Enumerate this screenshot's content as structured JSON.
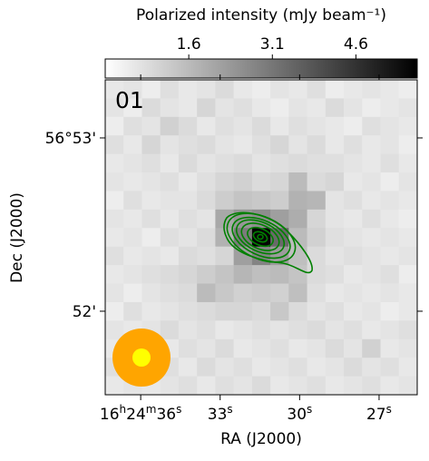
{
  "chart_data": {
    "type": "image",
    "panel_label": "01",
    "xlabel": "RA (J2000)",
    "ylabel": "Dec (J2000)",
    "colorbar_label": "Polarized intensity (mJy beam⁻¹)",
    "clim": [
      0.1,
      5.7
    ],
    "cticks": [
      1.6,
      3.1,
      4.6
    ],
    "xlim": [
      37.34,
      25.56
    ],
    "xticks": [
      {
        "value": 36,
        "label": "16h24m36s"
      },
      {
        "value": 33,
        "label": "33s"
      },
      {
        "value": 30,
        "label": "30s"
      },
      {
        "value": 27,
        "label": "27s"
      }
    ],
    "ylim": [
      51.518,
      53.335
    ],
    "yticks": [
      {
        "value": 53,
        "label": "56°53'"
      },
      {
        "value": 52,
        "label": "52'"
      }
    ],
    "contour_color": "#008000",
    "image": [
      [
        0.6,
        0.7,
        0.5,
        0.8,
        0.6,
        0.7,
        0.9,
        0.6,
        0.5,
        0.7,
        0.6,
        0.8,
        0.5,
        0.6,
        0.7,
        0.6,
        0.5
      ],
      [
        0.7,
        0.5,
        0.9,
        0.7,
        0.6,
        1.0,
        0.7,
        0.8,
        0.6,
        0.5,
        0.7,
        0.6,
        0.9,
        0.7,
        0.5,
        0.6,
        0.7
      ],
      [
        0.5,
        0.8,
        0.7,
        1.1,
        0.9,
        0.6,
        0.8,
        0.7,
        0.9,
        0.6,
        0.8,
        0.7,
        0.6,
        0.5,
        0.8,
        0.7,
        0.6
      ],
      [
        0.8,
        0.6,
        1.0,
        0.7,
        0.8,
        0.9,
        0.7,
        0.6,
        0.8,
        1.0,
        0.7,
        0.9,
        0.6,
        0.8,
        0.6,
        0.7,
        0.5
      ],
      [
        0.6,
        0.7,
        0.8,
        0.6,
        0.9,
        0.7,
        0.8,
        0.9,
        0.7,
        0.8,
        0.9,
        0.8,
        0.8,
        0.7,
        0.6,
        0.8,
        0.6
      ],
      [
        0.7,
        0.6,
        0.7,
        0.8,
        0.6,
        0.8,
        1.0,
        1.1,
        0.9,
        1.0,
        1.6,
        0.9,
        1.0,
        0.6,
        0.7,
        0.5,
        0.7
      ],
      [
        0.5,
        0.8,
        0.6,
        0.7,
        0.7,
        0.9,
        1.2,
        1.4,
        1.3,
        1.2,
        1.8,
        1.7,
        0.7,
        0.8,
        0.6,
        0.7,
        0.6
      ],
      [
        0.7,
        0.6,
        0.8,
        0.6,
        0.8,
        0.7,
        2.0,
        2.4,
        2.6,
        2.2,
        1.9,
        1.0,
        0.7,
        0.6,
        0.8,
        0.6,
        0.5
      ],
      [
        0.6,
        0.7,
        0.5,
        0.8,
        0.7,
        0.9,
        1.8,
        3.0,
        5.6,
        3.4,
        1.6,
        1.1,
        0.8,
        0.7,
        0.6,
        0.7,
        0.6
      ],
      [
        0.8,
        0.6,
        0.7,
        0.6,
        0.9,
        0.8,
        1.0,
        2.2,
        2.8,
        2.3,
        1.5,
        0.9,
        0.7,
        0.8,
        0.7,
        0.6,
        0.7
      ],
      [
        0.6,
        0.7,
        0.8,
        0.9,
        1.0,
        1.2,
        1.4,
        1.7,
        1.5,
        1.6,
        1.4,
        0.9,
        0.8,
        0.6,
        0.7,
        0.8,
        0.5
      ],
      [
        0.7,
        0.5,
        0.7,
        0.8,
        0.9,
        1.6,
        1.3,
        1.1,
        1.2,
        1.1,
        1.5,
        0.8,
        0.6,
        0.7,
        0.6,
        0.7,
        0.6
      ],
      [
        0.5,
        0.8,
        0.6,
        0.7,
        0.8,
        0.9,
        1.0,
        1.0,
        0.9,
        1.3,
        0.9,
        0.7,
        0.8,
        0.6,
        0.7,
        0.5,
        0.6
      ],
      [
        0.7,
        0.6,
        0.7,
        0.9,
        0.7,
        0.8,
        0.6,
        0.7,
        0.8,
        0.7,
        0.8,
        0.9,
        0.7,
        0.8,
        0.6,
        0.7,
        0.8
      ],
      [
        0.6,
        0.7,
        0.8,
        0.6,
        0.8,
        0.7,
        0.9,
        0.6,
        0.7,
        0.8,
        0.6,
        0.7,
        0.9,
        0.7,
        1.1,
        0.6,
        0.7
      ],
      [
        0.8,
        0.6,
        0.7,
        0.8,
        0.6,
        0.9,
        0.7,
        0.8,
        0.6,
        0.7,
        0.8,
        0.6,
        0.7,
        0.9,
        0.7,
        0.8,
        0.6
      ],
      [
        0.6,
        0.7,
        0.6,
        0.7,
        0.8,
        0.6,
        0.8,
        0.7,
        0.9,
        0.6,
        0.7,
        0.8,
        0.6,
        0.7,
        0.8,
        0.6,
        0.7
      ]
    ]
  }
}
